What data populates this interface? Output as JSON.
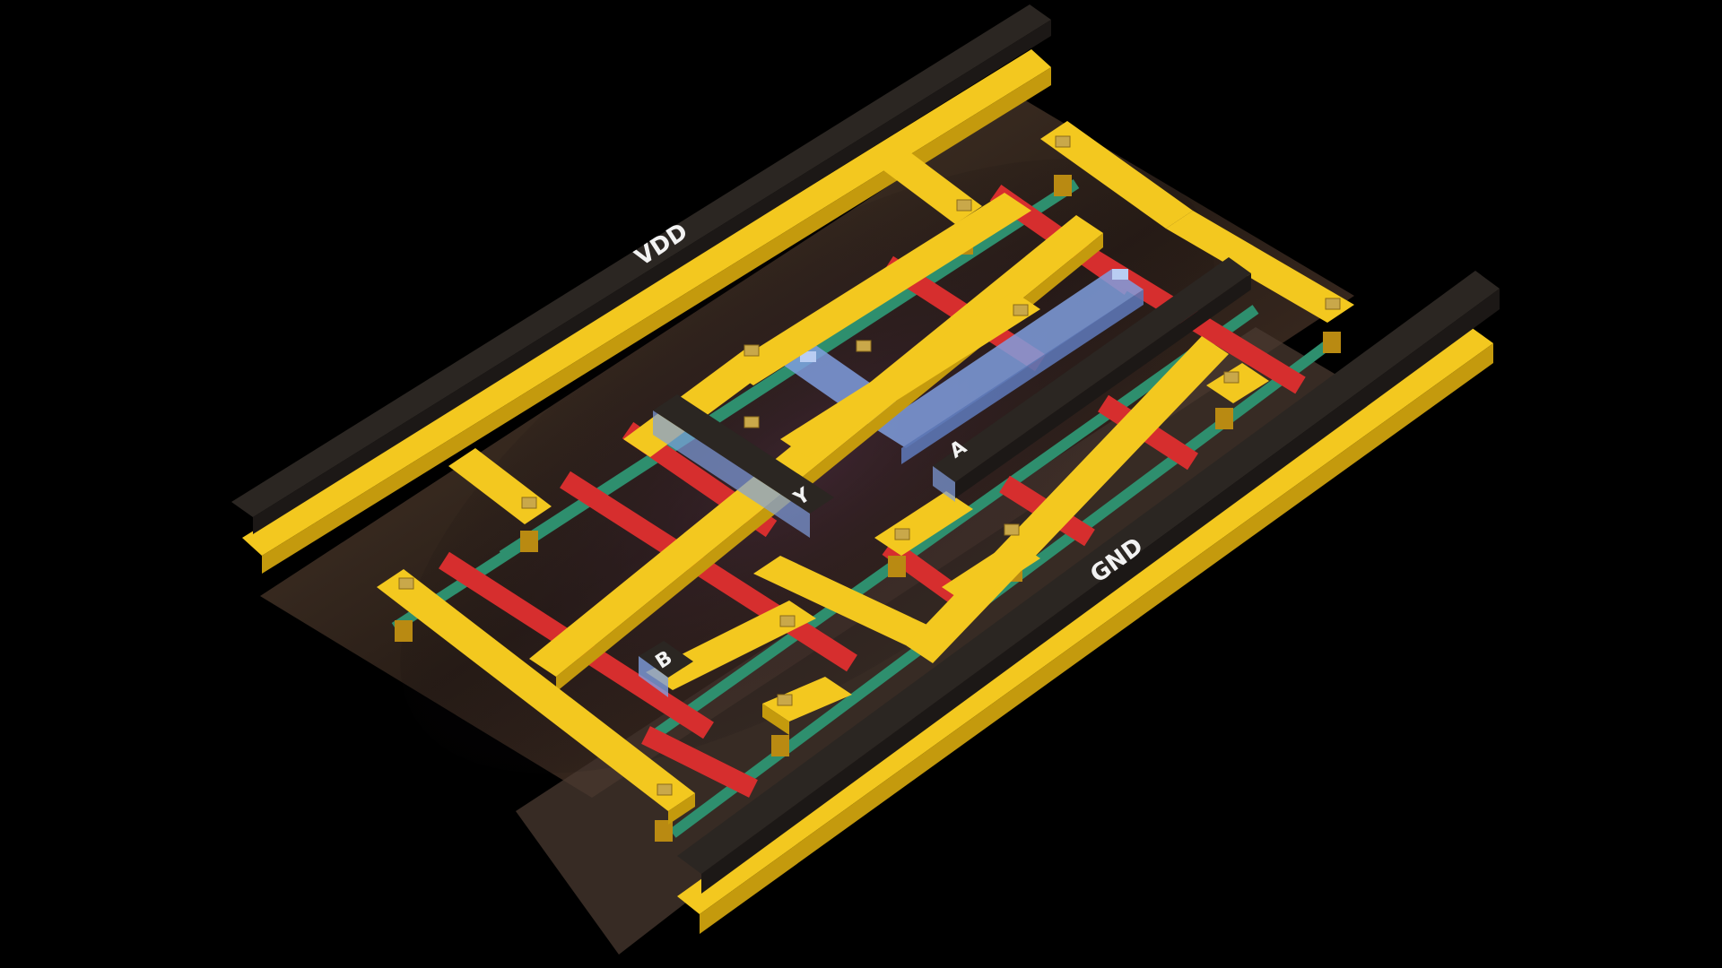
{
  "colors": {
    "background": "#000000",
    "metal1_yellow": "#f3c81f",
    "metal1_side": "#c49a0d",
    "poly_red": "#d62e2e",
    "diffusion_green": "#2e8f6e",
    "via_blue": "#7f9ede",
    "label_plate": "#2b2622",
    "substrate": "#5a4430"
  },
  "labels": {
    "vdd": "VDD",
    "gnd": "GND",
    "a": "A",
    "b": "B",
    "y": "Y"
  }
}
